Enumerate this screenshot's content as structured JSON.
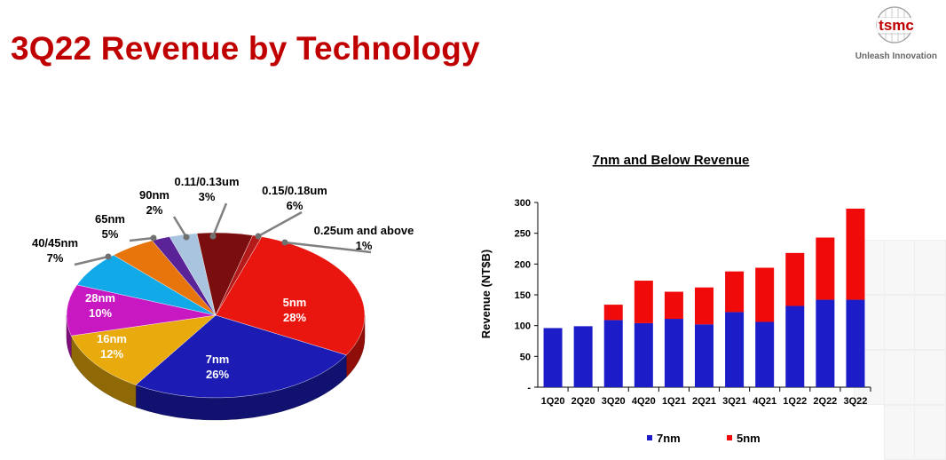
{
  "slide": {
    "title": "3Q22 Revenue by Technology",
    "logo_text": "tsmc",
    "tagline": "Unleash Innovation",
    "title_color": "#c00000"
  },
  "chart_data": [
    {
      "type": "pie",
      "title": "",
      "slices": [
        {
          "label": "5nm",
          "value": 28,
          "value_label": "28%",
          "color": "#e8160f"
        },
        {
          "label": "7nm",
          "value": 26,
          "value_label": "26%",
          "color": "#1c1cb4"
        },
        {
          "label": "16nm",
          "value": 12,
          "value_label": "12%",
          "color": "#e8aa0c"
        },
        {
          "label": "28nm",
          "value": 10,
          "value_label": "10%",
          "color": "#c818c2"
        },
        {
          "label": "40/45nm",
          "value": 7,
          "value_label": "7%",
          "color": "#12a9e8"
        },
        {
          "label": "65nm",
          "value": 5,
          "value_label": "5%",
          "color": "#e8740c"
        },
        {
          "label": "90nm",
          "value": 2,
          "value_label": "2%",
          "color": "#5a2398"
        },
        {
          "label": "0.11/0.13um",
          "value": 3,
          "value_label": "3%",
          "color": "#a9c4de"
        },
        {
          "label": "0.15/0.18um",
          "value": 6,
          "value_label": "6%",
          "color": "#7a0d0d"
        },
        {
          "label": "0.25um and above",
          "value": 1,
          "value_label": "1%",
          "color": "#b51a1a"
        }
      ]
    },
    {
      "type": "bar",
      "stacked": true,
      "title": "7nm and Below Revenue",
      "xlabel": "",
      "ylabel": "Revenue (NT$B)",
      "ylim": [
        0,
        300
      ],
      "yticks": [
        "-",
        "50",
        "100",
        "150",
        "200",
        "250",
        "300"
      ],
      "categories": [
        "1Q20",
        "2Q20",
        "3Q20",
        "4Q20",
        "1Q21",
        "2Q21",
        "3Q21",
        "4Q21",
        "1Q22",
        "2Q22",
        "3Q22"
      ],
      "series": [
        {
          "name": "7nm",
          "color": "#1c1cc8",
          "values": [
            96,
            99,
            109,
            104,
            111,
            102,
            122,
            106,
            132,
            142,
            142
          ]
        },
        {
          "name": "5nm",
          "color": "#f00a0a",
          "values": [
            0,
            0,
            25,
            69,
            44,
            60,
            66,
            88,
            86,
            101,
            148
          ]
        }
      ],
      "legend_position": "bottom",
      "grid": false
    }
  ]
}
